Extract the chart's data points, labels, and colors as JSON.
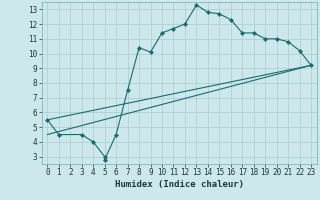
{
  "title": "",
  "xlabel": "Humidex (Indice chaleur)",
  "bg_color": "#cce8ec",
  "grid_color": "#aaccd0",
  "line_color": "#1a6b6b",
  "xlim": [
    -0.5,
    23.5
  ],
  "ylim": [
    2.5,
    13.5
  ],
  "xticks": [
    0,
    1,
    2,
    3,
    4,
    5,
    6,
    7,
    8,
    9,
    10,
    11,
    12,
    13,
    14,
    15,
    16,
    17,
    18,
    19,
    20,
    21,
    22,
    23
  ],
  "yticks": [
    3,
    4,
    5,
    6,
    7,
    8,
    9,
    10,
    11,
    12,
    13
  ],
  "series1_x": [
    0,
    1,
    3,
    4,
    5,
    5,
    6,
    7,
    8,
    9,
    10,
    11,
    12,
    13,
    14,
    15,
    16,
    17,
    18,
    19,
    20,
    21,
    22,
    23
  ],
  "series1_y": [
    5.5,
    4.5,
    4.5,
    4.0,
    3.0,
    2.8,
    4.5,
    7.5,
    10.4,
    10.1,
    11.4,
    11.7,
    12.0,
    13.3,
    12.8,
    12.7,
    12.3,
    11.4,
    11.4,
    11.0,
    11.0,
    10.8,
    10.2,
    9.2
  ],
  "series2_x": [
    0,
    23
  ],
  "series2_y": [
    5.5,
    9.2
  ],
  "series3_x": [
    0,
    23
  ],
  "series3_y": [
    4.5,
    9.2
  ],
  "xlabel_fontsize": 6.5,
  "tick_fontsize": 5.5,
  "xlabel_color": "#1a3a3a",
  "tick_color": "#1a3a3a"
}
